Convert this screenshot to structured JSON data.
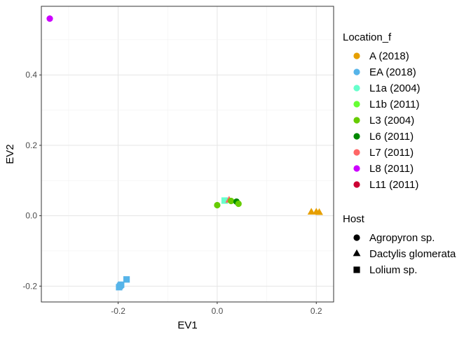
{
  "chart_data": {
    "type": "scatter",
    "title": "",
    "xlabel": "EV1",
    "ylabel": "EV2",
    "xlim": [
      -0.355,
      0.235
    ],
    "ylim": [
      -0.245,
      0.595
    ],
    "xticks": [
      -0.2,
      0.0,
      0.2
    ],
    "xtick_labels": [
      "-0.2",
      "0.0",
      "0.2"
    ],
    "yticks": [
      -0.2,
      0.0,
      0.2,
      0.4
    ],
    "ytick_labels": [
      "-0.2",
      "0.0",
      "0.2",
      "0.4"
    ],
    "grid": true,
    "legend_position": "right",
    "color_legend": {
      "title": "Location_f",
      "items": [
        {
          "label": "A (2018)",
          "color": "#E69F00"
        },
        {
          "label": "EA (2018)",
          "color": "#56B4E9"
        },
        {
          "label": "L1a (2004)",
          "color": "#66FFCC"
        },
        {
          "label": "L1b (2011)",
          "color": "#66FF33"
        },
        {
          "label": "L3 (2004)",
          "color": "#66CC00"
        },
        {
          "label": "L6 (2011)",
          "color": "#008800"
        },
        {
          "label": "L7 (2011)",
          "color": "#FF6666"
        },
        {
          "label": "L8 (2011)",
          "color": "#CC00FF"
        },
        {
          "label": "L11 (2011)",
          "color": "#CC0033"
        }
      ]
    },
    "shape_legend": {
      "title": "Host",
      "items": [
        {
          "label": "Agropyron sp.",
          "shape": "circle"
        },
        {
          "label": "Dactylis glomerata",
          "shape": "triangle"
        },
        {
          "label": "Lolium sp.",
          "shape": "square"
        }
      ]
    },
    "points": [
      {
        "x": -0.338,
        "y": 0.56,
        "location": "L8 (2011)",
        "shape": "circle"
      },
      {
        "x": -0.198,
        "y": -0.203,
        "location": "EA (2018)",
        "shape": "square"
      },
      {
        "x": -0.196,
        "y": -0.199,
        "location": "EA (2018)",
        "shape": "square"
      },
      {
        "x": -0.194,
        "y": -0.196,
        "location": "EA (2018)",
        "shape": "square"
      },
      {
        "x": -0.183,
        "y": -0.181,
        "location": "EA (2018)",
        "shape": "square"
      },
      {
        "x": 0.0,
        "y": 0.03,
        "location": "L3 (2004)",
        "shape": "circle"
      },
      {
        "x": 0.015,
        "y": 0.043,
        "location": "L1a (2004)",
        "shape": "square"
      },
      {
        "x": 0.024,
        "y": 0.044,
        "location": "L7 (2011)",
        "shape": "triangle"
      },
      {
        "x": 0.028,
        "y": 0.042,
        "location": "L3 (2004)",
        "shape": "circle"
      },
      {
        "x": 0.039,
        "y": 0.04,
        "location": "L6 (2011)",
        "shape": "circle"
      },
      {
        "x": 0.043,
        "y": 0.034,
        "location": "L3 (2004)",
        "shape": "circle"
      },
      {
        "x": 0.19,
        "y": 0.01,
        "location": "A (2018)",
        "shape": "triangle"
      },
      {
        "x": 0.2,
        "y": 0.01,
        "location": "A (2018)",
        "shape": "triangle"
      },
      {
        "x": 0.206,
        "y": 0.009,
        "location": "A (2018)",
        "shape": "triangle"
      }
    ]
  }
}
